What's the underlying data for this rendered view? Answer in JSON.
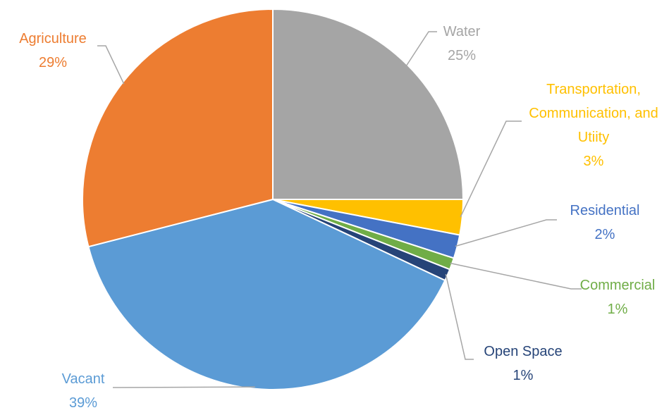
{
  "chart_data": {
    "type": "pie",
    "categories": [
      "Water",
      "Transportation, Communication, and Utiity",
      "Residential",
      "Commercial",
      "Open Space",
      "Vacant",
      "Agriculture"
    ],
    "values": [
      25,
      3,
      2,
      1,
      1,
      39,
      29
    ],
    "value_labels": [
      "25%",
      "3%",
      "2%",
      "1%",
      "1%",
      "39%",
      "29%"
    ],
    "colors": [
      "#a5a5a5",
      "#ffc000",
      "#4472c4",
      "#70ad47",
      "#264478",
      "#5b9bd5",
      "#ed7d31"
    ]
  }
}
